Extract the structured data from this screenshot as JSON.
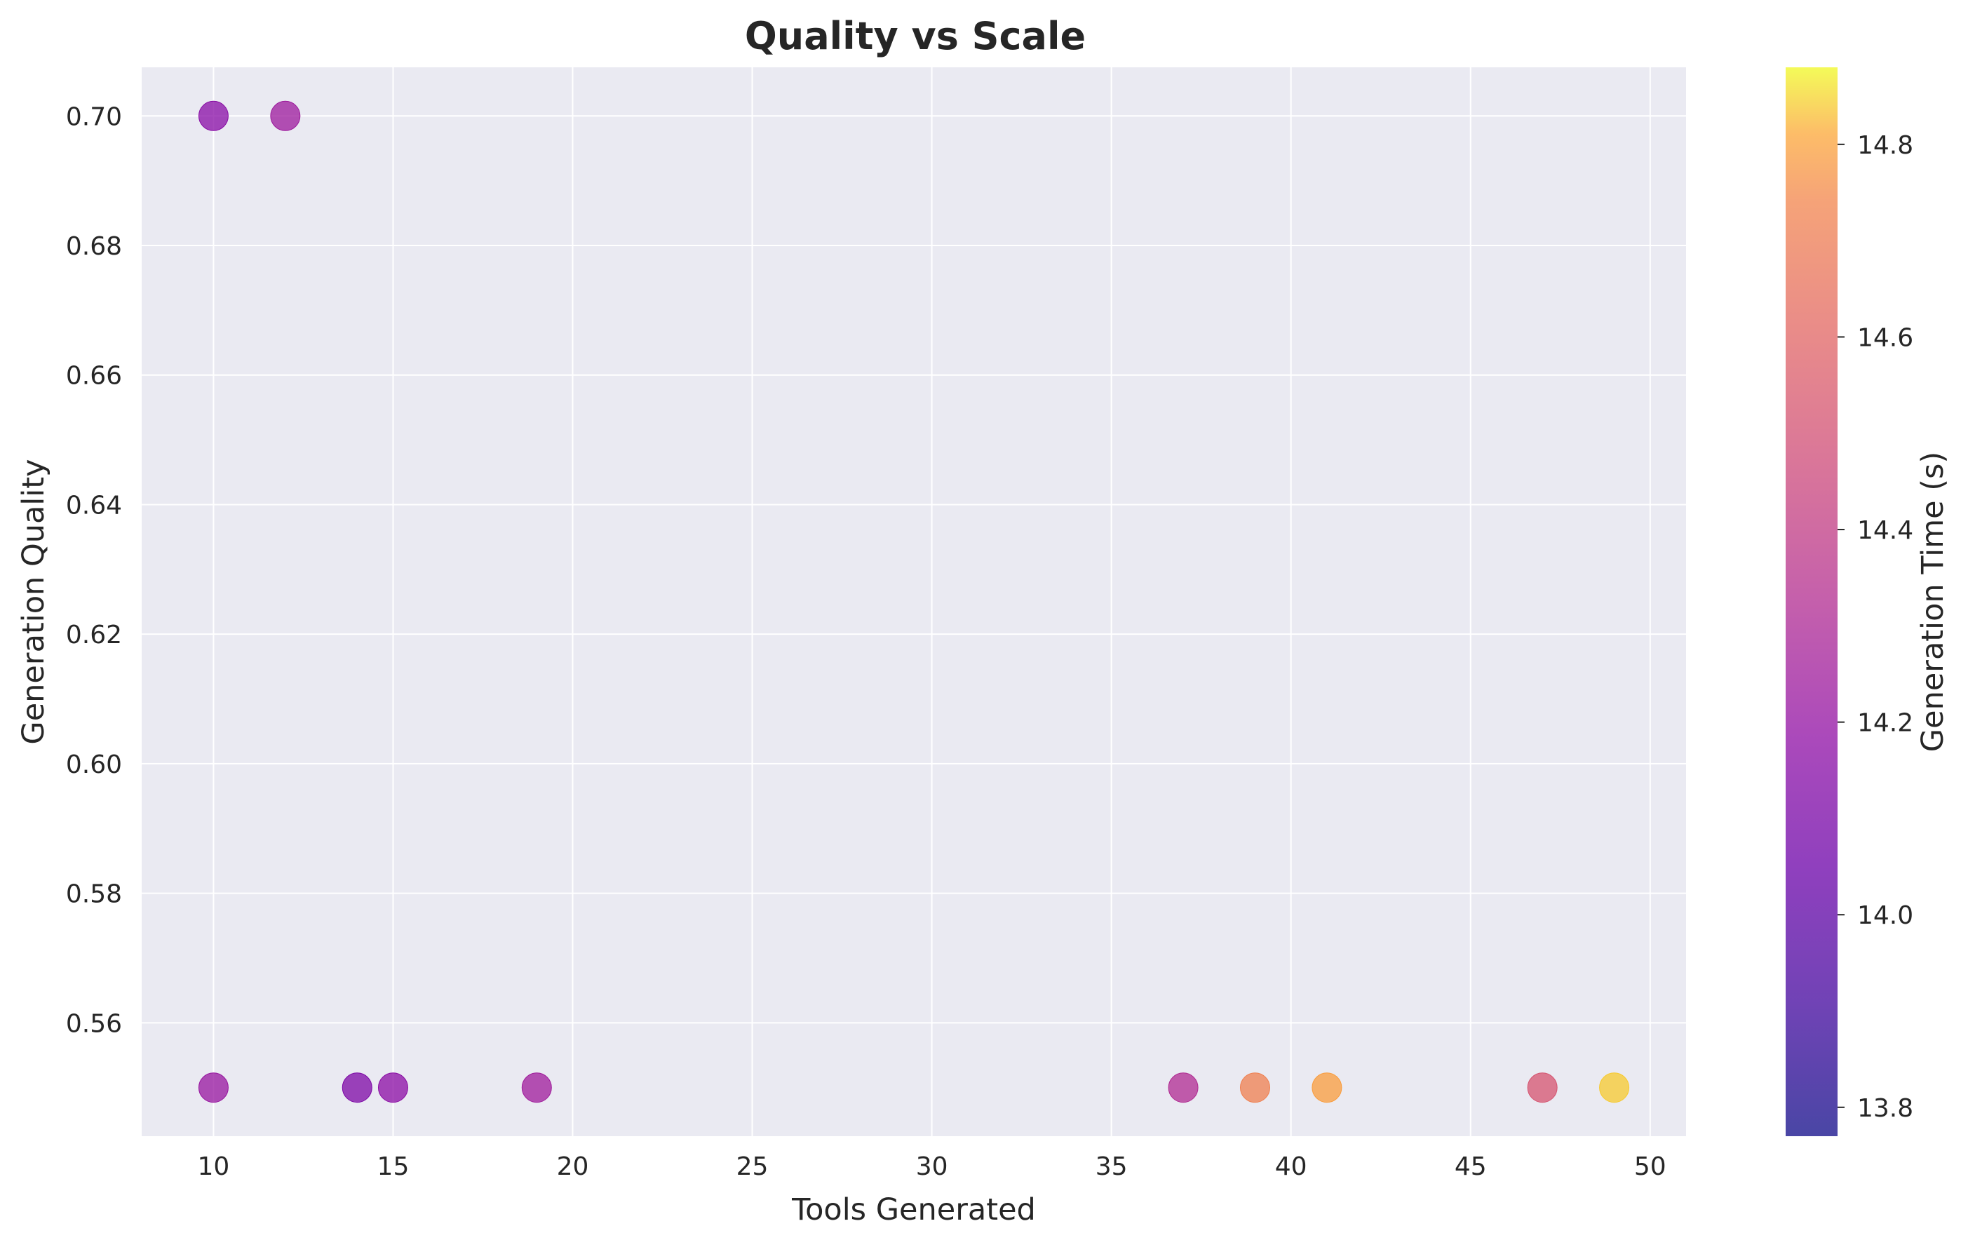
{
  "chart_data": {
    "type": "scatter",
    "title": "Quality vs Scale",
    "xlabel": "Tools Generated",
    "ylabel": "Generation Quality",
    "xlim": [
      8,
      51
    ],
    "ylim": [
      0.5425,
      0.7075
    ],
    "xticks": [
      10,
      15,
      20,
      25,
      30,
      35,
      40,
      45,
      50
    ],
    "xtick_labels": [
      "10",
      "15",
      "20",
      "25",
      "30",
      "35",
      "40",
      "45",
      "50"
    ],
    "yticks": [
      0.56,
      0.58,
      0.6,
      0.62,
      0.64,
      0.66,
      0.68,
      0.7
    ],
    "ytick_labels": [
      "0.56",
      "0.58",
      "0.60",
      "0.62",
      "0.64",
      "0.66",
      "0.68",
      "0.70"
    ],
    "grid": true,
    "background_color": "#eaeaf2",
    "colormap": "plasma",
    "colorbar": {
      "label": "Generation Time (s)",
      "range": [
        13.77,
        14.88
      ],
      "ticks": [
        13.8,
        14.0,
        14.2,
        14.4,
        14.6,
        14.8
      ],
      "tick_labels": [
        "13.8",
        "14.0",
        "14.2",
        "14.4",
        "14.6",
        "14.8"
      ]
    },
    "points": [
      {
        "x": 10,
        "y": 0.7,
        "c": 14.16
      },
      {
        "x": 12,
        "y": 0.7,
        "c": 14.24
      },
      {
        "x": 10,
        "y": 0.55,
        "c": 14.22
      },
      {
        "x": 14,
        "y": 0.55,
        "c": 14.12
      },
      {
        "x": 15,
        "y": 0.55,
        "c": 14.17
      },
      {
        "x": 19,
        "y": 0.55,
        "c": 14.25
      },
      {
        "x": 37,
        "y": 0.55,
        "c": 14.32
      },
      {
        "x": 39,
        "y": 0.55,
        "c": 14.72
      },
      {
        "x": 41,
        "y": 0.55,
        "c": 14.79
      },
      {
        "x": 47,
        "y": 0.55,
        "c": 14.52
      },
      {
        "x": 49,
        "y": 0.55,
        "c": 14.84
      }
    ]
  }
}
